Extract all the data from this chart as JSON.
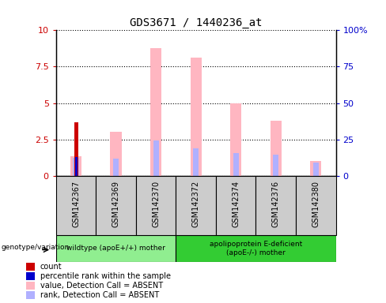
{
  "title": "GDS3671 / 1440236_at",
  "samples": [
    "GSM142367",
    "GSM142369",
    "GSM142370",
    "GSM142372",
    "GSM142374",
    "GSM142376",
    "GSM142380"
  ],
  "count_values": [
    3.7,
    0,
    0,
    0,
    0,
    0,
    0
  ],
  "percentile_rank_values": [
    1.3,
    0,
    0,
    0,
    0,
    0,
    0
  ],
  "absent_value_values": [
    1.35,
    3.0,
    8.8,
    8.1,
    5.0,
    3.8,
    1.0
  ],
  "absent_rank_values": [
    1.25,
    1.2,
    2.45,
    1.9,
    1.55,
    1.45,
    0.9
  ],
  "ylim": [
    0,
    10
  ],
  "yticks_left": [
    0,
    2.5,
    5,
    7.5,
    10
  ],
  "ytick_labels_left": [
    "0",
    "2.5",
    "5",
    "7.5",
    "10"
  ],
  "yticks_right": [
    0,
    2.5,
    5,
    7.5,
    10
  ],
  "ytick_labels_right": [
    "0",
    "25",
    "50",
    "75",
    "100%"
  ],
  "group1_indices": [
    0,
    1,
    2
  ],
  "group2_indices": [
    3,
    4,
    5,
    6
  ],
  "group1_label": "wildtype (apoE+/+) mother",
  "group2_label": "apolipoprotein E-deficient\n(apoE-/-) mother",
  "group_label_prefix": "genotype/variation",
  "group1_color": "#90ee90",
  "group2_color": "#33cc33",
  "count_color": "#cc0000",
  "percentile_rank_color": "#0000cc",
  "absent_value_color": "#ffb6c1",
  "absent_rank_color": "#b0b0ff",
  "bar_bg_color": "#cccccc",
  "plot_bg_color": "#ffffff",
  "legend_items": [
    {
      "label": "count",
      "color": "#cc0000"
    },
    {
      "label": "percentile rank within the sample",
      "color": "#0000cc"
    },
    {
      "label": "value, Detection Call = ABSENT",
      "color": "#ffb6c1"
    },
    {
      "label": "rank, Detection Call = ABSENT",
      "color": "#b0b0ff"
    }
  ]
}
